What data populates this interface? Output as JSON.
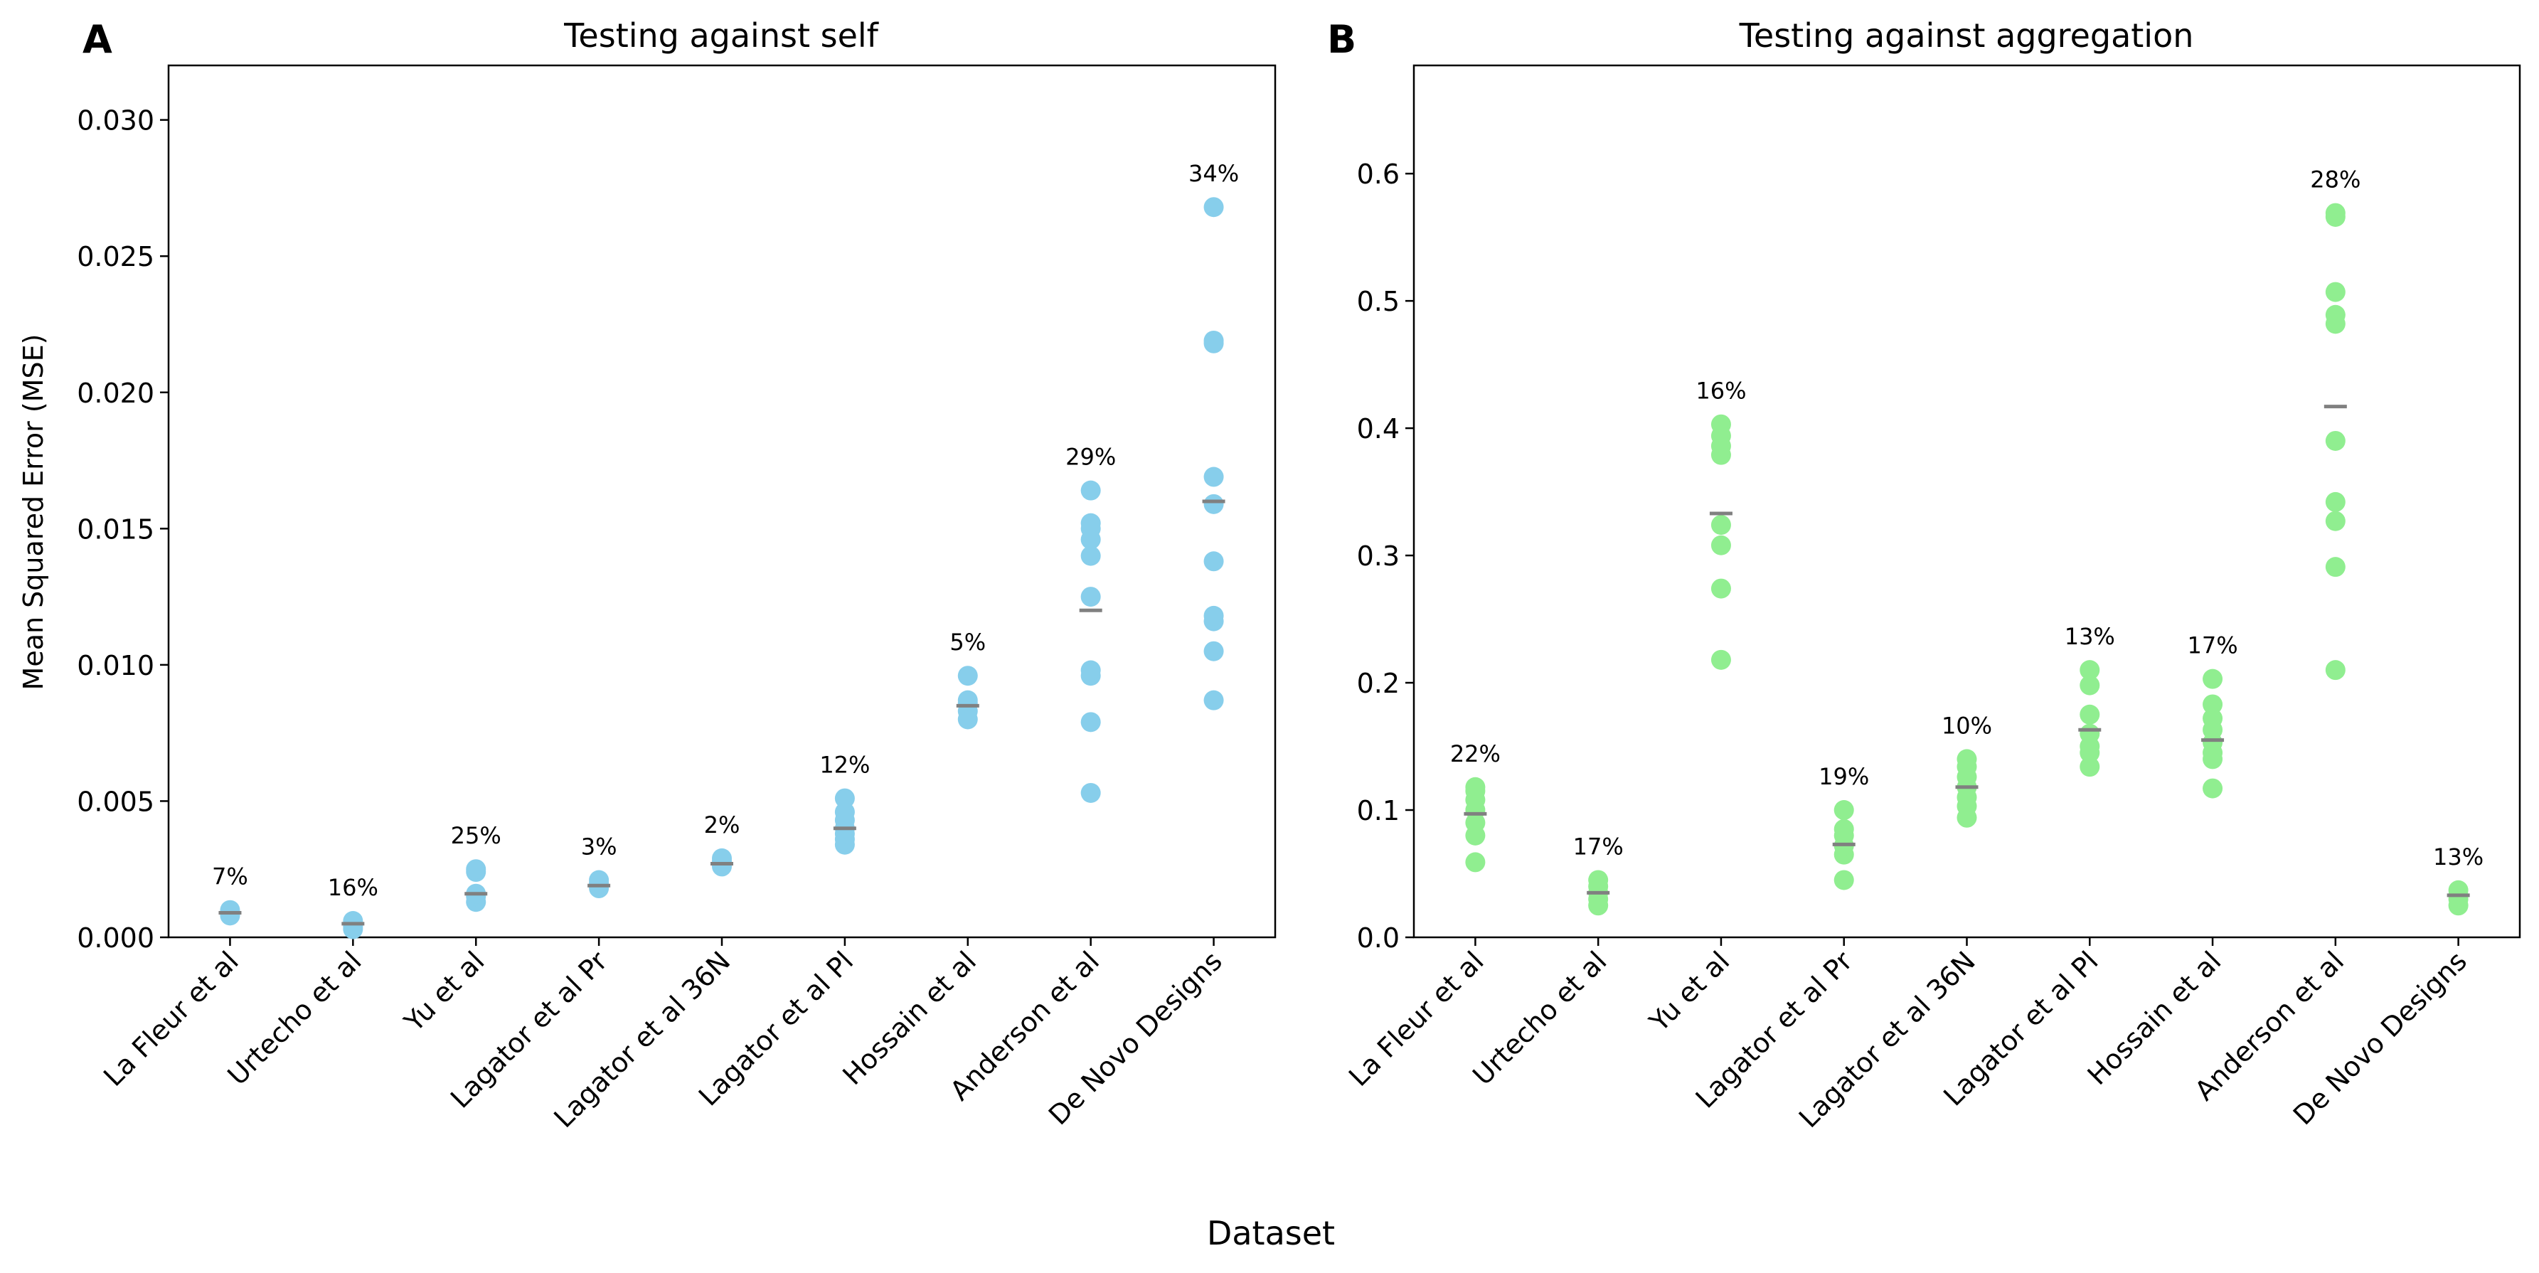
{
  "figure": {
    "xlabel": "Dataset"
  },
  "chart_data": [
    {
      "type": "scatter",
      "panel_letter": "A",
      "title": "Testing against self",
      "ylabel": "Mean Squared Error (MSE)",
      "xlabel": "",
      "ylim": [
        0,
        0.032
      ],
      "yticks": [
        0.0,
        0.005,
        0.01,
        0.015,
        0.02,
        0.025,
        0.03
      ],
      "ytick_labels": [
        "0.000",
        "0.005",
        "0.010",
        "0.015",
        "0.020",
        "0.025",
        "0.030"
      ],
      "marker_color": "#87CEEB",
      "mean_color": "#808080",
      "categories": [
        "La Fleur et al",
        "Urtecho et al",
        "Yu et al",
        "Lagator et al Pr",
        "Lagator et al 36N",
        "Lagator et al Pl",
        "Hossain et al",
        "Anderson et al",
        "De Novo Designs"
      ],
      "points": [
        [
          0.0009,
          0.0008,
          0.00085,
          0.001
        ],
        [
          0.0003,
          0.0004,
          0.0005,
          0.0005,
          0.0006
        ],
        [
          0.0013,
          0.0015,
          0.0016,
          0.0024,
          0.0025
        ],
        [
          0.0018,
          0.0019,
          0.002,
          0.0021
        ],
        [
          0.0026,
          0.0027,
          0.0028,
          0.0029
        ],
        [
          0.0034,
          0.0036,
          0.0038,
          0.004,
          0.0043,
          0.0046,
          0.0051
        ],
        [
          0.008,
          0.0083,
          0.0086,
          0.0087,
          0.0096
        ],
        [
          0.0053,
          0.0079,
          0.0096,
          0.0098,
          0.0125,
          0.014,
          0.0146,
          0.015,
          0.0152,
          0.0164
        ],
        [
          0.0087,
          0.0105,
          0.0116,
          0.0118,
          0.0138,
          0.0159,
          0.0169,
          0.0218,
          0.0219,
          0.0268
        ]
      ],
      "means": [
        0.0009,
        0.0005,
        0.0016,
        0.0019,
        0.0027,
        0.004,
        0.0085,
        0.012,
        0.016
      ],
      "annotations": [
        "7%",
        "16%",
        "25%",
        "3%",
        "2%",
        "12%",
        "5%",
        "29%",
        "34%"
      ]
    },
    {
      "type": "scatter",
      "panel_letter": "B",
      "title": "Testing against aggregation",
      "ylabel": "",
      "xlabel": "",
      "ylim": [
        0,
        0.685
      ],
      "yticks": [
        0.0,
        0.1,
        0.2,
        0.3,
        0.4,
        0.5,
        0.6
      ],
      "ytick_labels": [
        "0.0",
        "0.1",
        "0.2",
        "0.3",
        "0.4",
        "0.5",
        "0.6"
      ],
      "marker_color": "#90EE90",
      "mean_color": "#808080",
      "categories": [
        "La Fleur et al",
        "Urtecho et al",
        "Yu et al",
        "Lagator et al Pr",
        "Lagator et al 36N",
        "Lagator et al Pl",
        "Hossain et al",
        "Anderson et al",
        "De Novo Designs"
      ],
      "points": [
        [
          0.059,
          0.08,
          0.09,
          0.1,
          0.108,
          0.115,
          0.118
        ],
        [
          0.025,
          0.03,
          0.035,
          0.04,
          0.045
        ],
        [
          0.218,
          0.274,
          0.308,
          0.324,
          0.379,
          0.386,
          0.394,
          0.403
        ],
        [
          0.045,
          0.065,
          0.072,
          0.08,
          0.085,
          0.1
        ],
        [
          0.094,
          0.103,
          0.11,
          0.118,
          0.126,
          0.134,
          0.14
        ],
        [
          0.134,
          0.145,
          0.15,
          0.16,
          0.175,
          0.198,
          0.21
        ],
        [
          0.117,
          0.14,
          0.145,
          0.153,
          0.163,
          0.172,
          0.183,
          0.203
        ],
        [
          0.21,
          0.291,
          0.327,
          0.342,
          0.39,
          0.482,
          0.489,
          0.507,
          0.566,
          0.569
        ],
        [
          0.025,
          0.03,
          0.033,
          0.037
        ]
      ],
      "means": [
        0.097,
        0.035,
        0.333,
        0.073,
        0.118,
        0.163,
        0.155,
        0.417,
        0.033
      ],
      "annotations": [
        "22%",
        "17%",
        "16%",
        "19%",
        "10%",
        "13%",
        "17%",
        "28%",
        "13%"
      ]
    }
  ]
}
